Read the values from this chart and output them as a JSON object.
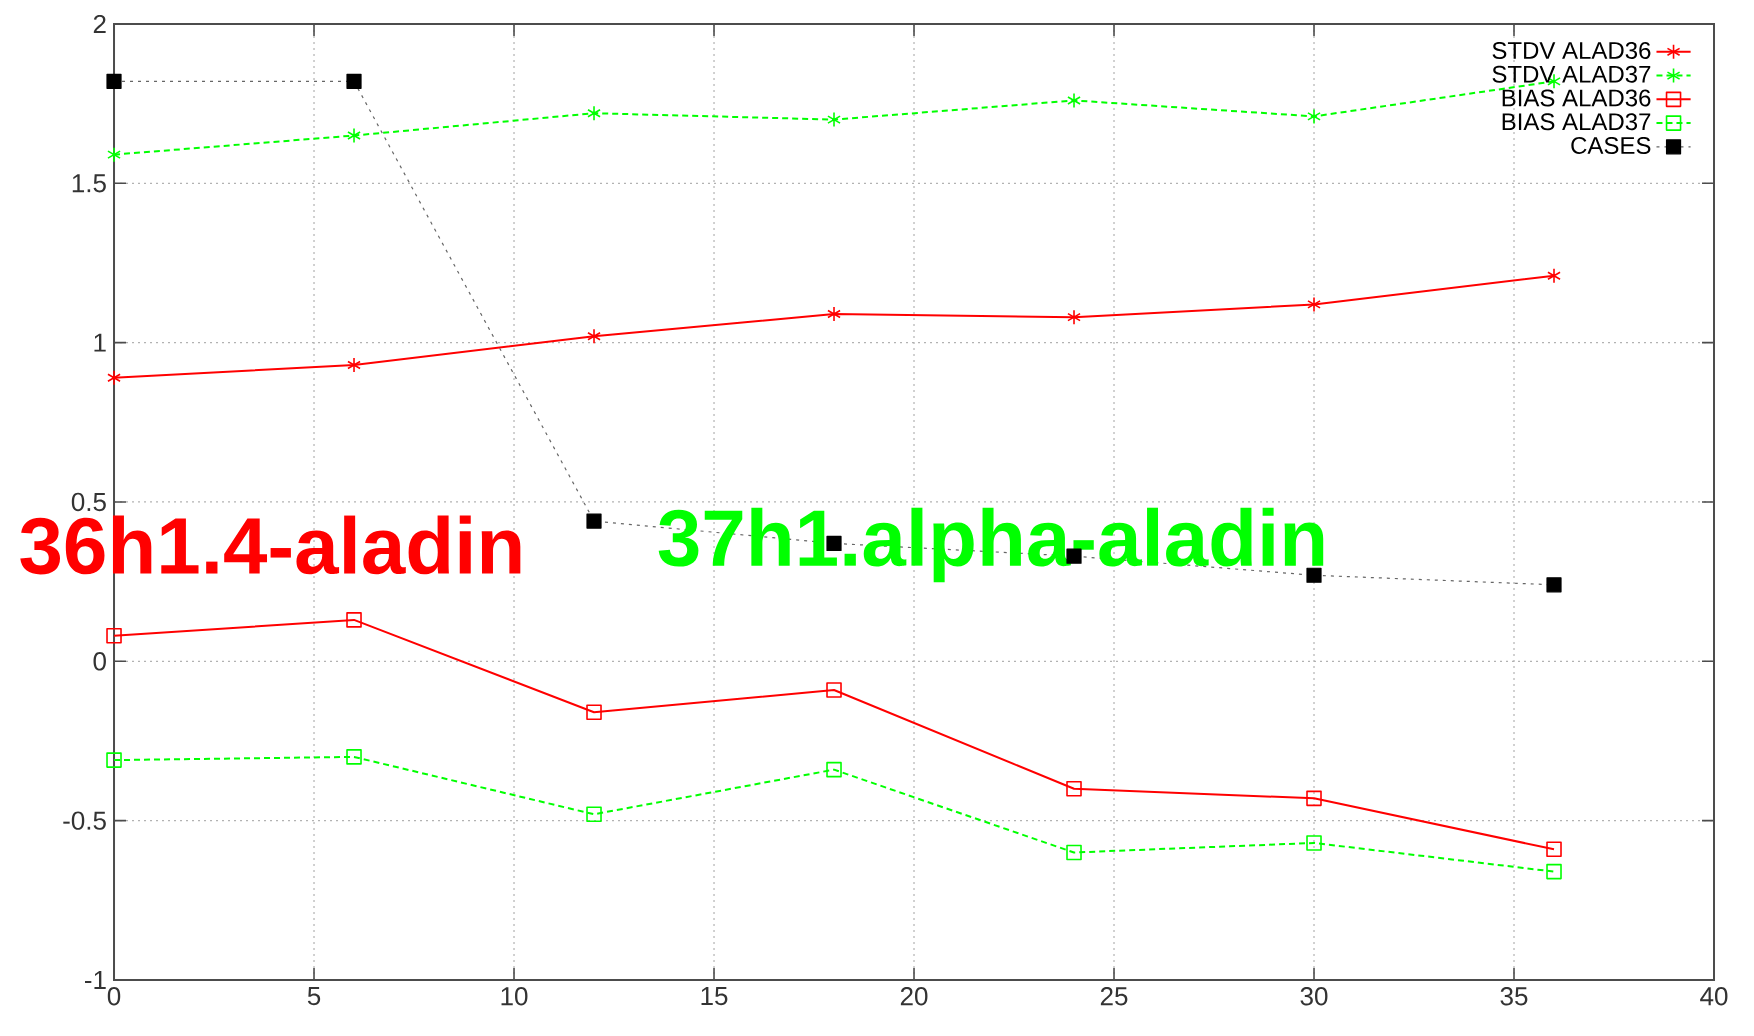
{
  "chart_data": {
    "type": "line",
    "x": [
      0,
      6,
      12,
      18,
      24,
      30,
      36
    ],
    "series": [
      {
        "name": "STDV ALAD36",
        "color": "#ff0000",
        "marker": "cross",
        "line_style": "solid",
        "values": [
          0.89,
          0.93,
          1.02,
          1.09,
          1.08,
          1.12,
          1.21
        ]
      },
      {
        "name": "STDV ALAD37",
        "color": "#00ff00",
        "marker": "cross",
        "line_style": "dashed",
        "values": [
          1.59,
          1.65,
          1.72,
          1.7,
          1.76,
          1.71,
          1.82
        ]
      },
      {
        "name": "BIAS ALAD36",
        "color": "#ff0000",
        "marker": "square",
        "line_style": "solid",
        "values": [
          0.08,
          0.13,
          -0.16,
          -0.09,
          -0.4,
          -0.43,
          -0.59
        ]
      },
      {
        "name": "BIAS ALAD37",
        "color": "#00ff00",
        "marker": "square",
        "line_style": "dashed",
        "values": [
          -0.31,
          -0.3,
          -0.48,
          -0.34,
          -0.6,
          -0.57,
          -0.66
        ]
      },
      {
        "name": "CASES",
        "color": "#000000",
        "marker": "square",
        "line_style": "dotted",
        "values": [
          1.82,
          1.82,
          0.44,
          0.37,
          0.33,
          0.27,
          0.24
        ]
      }
    ],
    "xlim": [
      0,
      40
    ],
    "xticks": [
      0,
      5,
      10,
      15,
      20,
      25,
      30,
      35,
      40
    ],
    "ylim": [
      -1,
      2
    ],
    "yticks": [
      -1,
      -0.5,
      0,
      0.5,
      1,
      1.5,
      2
    ],
    "grid": true,
    "legend": "top right",
    "annotations": [
      "36h1.4-aladin",
      "37h1.alpha-aladin"
    ]
  }
}
